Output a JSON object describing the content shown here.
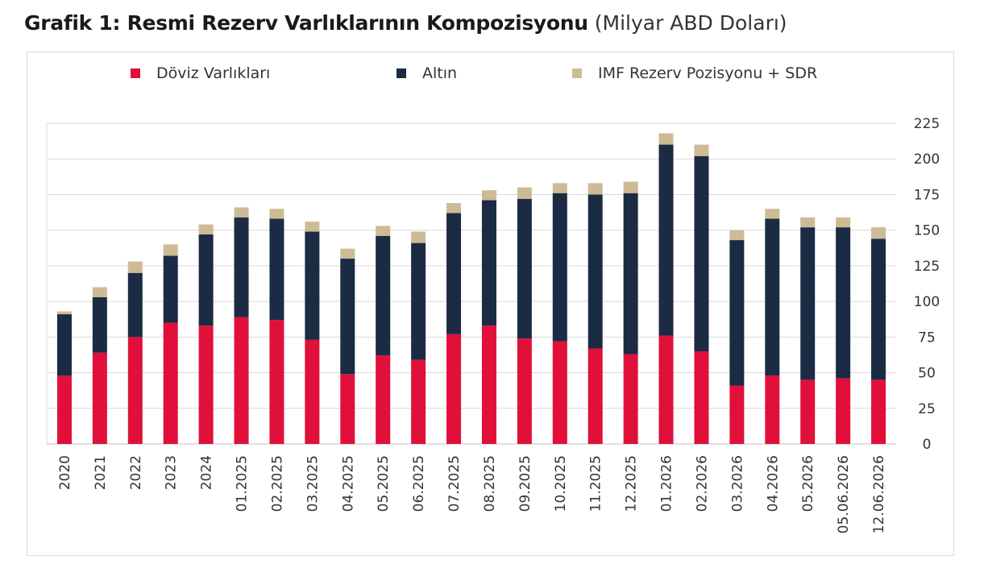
{
  "title": "Grafik 1: Resmi Rezerv Varlıklarının Kompozisyonu",
  "subtitle": "(Milyar ABD Doları)",
  "chart_data": {
    "type": "bar",
    "stacked": true,
    "categories": [
      "2020",
      "2021",
      "2022",
      "2023",
      "2024",
      "01.2025",
      "02.2025",
      "03.2025",
      "04.2025",
      "05.2025",
      "06.2025",
      "07.2025",
      "08.2025",
      "09.2025",
      "10.2025",
      "11.2025",
      "12.2025",
      "01.2026",
      "02.2026",
      "03.2026",
      "04.2026",
      "05.2026",
      "05.06.2026",
      "12.06.2026"
    ],
    "series": [
      {
        "name": "Döviz Varlıkları",
        "color": "#e0103a",
        "values": [
          48,
          64,
          75,
          85,
          83,
          89,
          87,
          73,
          49,
          62,
          59,
          77,
          83,
          74,
          72,
          67,
          63,
          76,
          65,
          41,
          48,
          45,
          46,
          45
        ]
      },
      {
        "name": "Altın",
        "color": "#1c2b44",
        "values": [
          43,
          39,
          45,
          47,
          64,
          70,
          71,
          76,
          81,
          84,
          82,
          85,
          88,
          98,
          104,
          108,
          113,
          134,
          137,
          102,
          110,
          107,
          106,
          99
        ]
      },
      {
        "name": "IMF Rezerv Pozisyonu + SDR",
        "color": "#cdbb96",
        "values": [
          2,
          7,
          8,
          8,
          7,
          7,
          7,
          7,
          7,
          7,
          8,
          7,
          7,
          8,
          7,
          8,
          8,
          8,
          8,
          7,
          7,
          7,
          7,
          8
        ]
      }
    ],
    "ylim": [
      0,
      225
    ],
    "yticks": [
      0,
      25,
      50,
      75,
      100,
      125,
      150,
      175,
      200,
      225
    ],
    "y_axis_position": "right",
    "grid": true,
    "legend_position": "top"
  }
}
